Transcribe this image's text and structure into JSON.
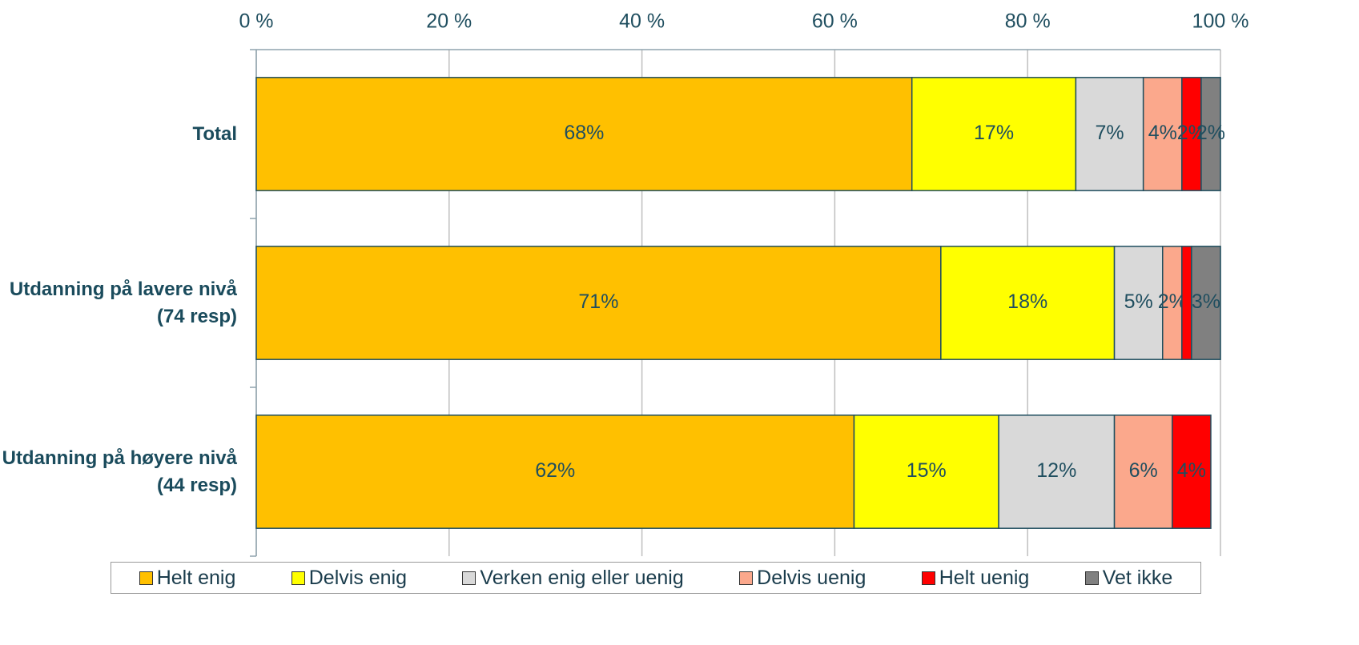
{
  "chart_data": {
    "type": "stacked-barh",
    "categories": [
      "Total",
      "Utdanning på lavere nivå (74 resp)",
      "Utdanning på høyere nivå (44 resp)"
    ],
    "series": [
      {
        "name": "Helt enig",
        "color": "#FFC000",
        "values": [
          68,
          71,
          62
        ],
        "value_labels": [
          "68%",
          "71%",
          "62%"
        ]
      },
      {
        "name": "Delvis enig",
        "color": "#FFFF00",
        "values": [
          17,
          18,
          15
        ],
        "value_labels": [
          "17%",
          "18%",
          "15%"
        ]
      },
      {
        "name": "Verken enig eller uenig",
        "color": "#D9D9D9",
        "values": [
          7,
          5,
          12
        ],
        "value_labels": [
          "7%",
          "5%",
          "12%"
        ]
      },
      {
        "name": "Delvis uenig",
        "color": "#FBA88C",
        "values": [
          4,
          2,
          6
        ],
        "value_labels": [
          "4%",
          "2%",
          "6%"
        ]
      },
      {
        "name": "Helt uenig",
        "color": "#FF0000",
        "values": [
          2,
          1,
          4
        ],
        "value_labels": [
          "2%",
          null,
          "4%"
        ]
      },
      {
        "name": "Vet ikke",
        "color": "#808080",
        "values": [
          2,
          3,
          0
        ],
        "value_labels": [
          "2%",
          "3%",
          null
        ]
      }
    ],
    "xlim": [
      0,
      100
    ],
    "xticks": [
      {
        "value": 0,
        "label": "0 %"
      },
      {
        "value": 20,
        "label": "20 %"
      },
      {
        "value": 40,
        "label": "40 %"
      },
      {
        "value": 60,
        "label": "60 %"
      },
      {
        "value": 80,
        "label": "80 %"
      },
      {
        "value": 100,
        "label": "100 %"
      }
    ],
    "grid": true,
    "legend": "bottom"
  }
}
